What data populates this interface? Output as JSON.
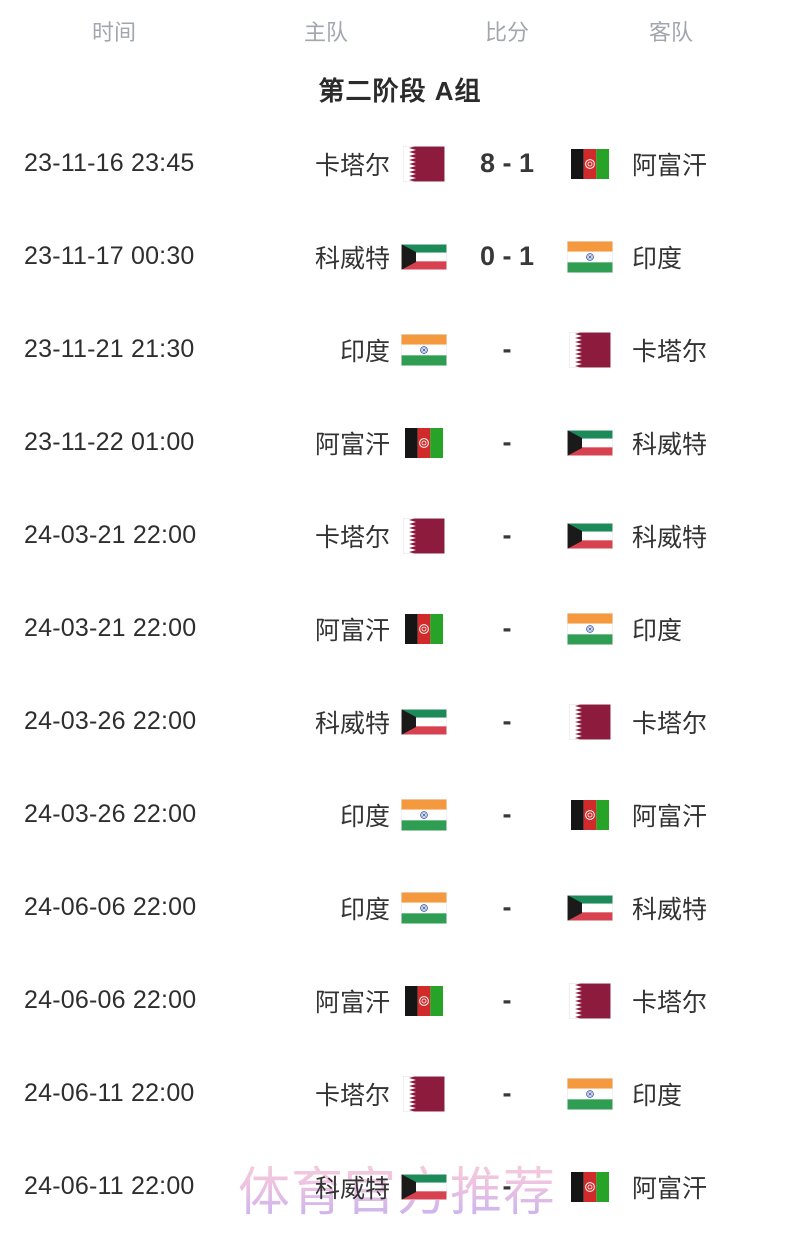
{
  "header": {
    "columns": [
      "时间",
      "主队",
      "比分",
      "客队"
    ]
  },
  "group_title": "第二阶段 A组",
  "watermark": "体育官方推荐",
  "teams": {
    "qatar": {
      "name": "卡塔尔"
    },
    "kuwait": {
      "name": "科威特"
    },
    "india": {
      "name": "印度"
    },
    "afghanistan": {
      "name": "阿富汗"
    }
  },
  "flag_colors": {
    "qatar": {
      "maroon": "#8d1b3d",
      "white": "#ffffff"
    },
    "kuwait": {
      "green": "#1d8a5a",
      "white": "#ffffff",
      "red": "#d8414f",
      "black": "#1a1a1a"
    },
    "india": {
      "saffron": "#f5993e",
      "white": "#ffffff",
      "green": "#2f9e52",
      "navy": "#2b4ea0"
    },
    "afghanistan": {
      "black": "#151515",
      "red": "#d02a2a",
      "green": "#27a327",
      "white": "#ffffff"
    }
  },
  "watermark_colors": {
    "top": "#f7cbce",
    "bottom": "#b7a3f0"
  },
  "matches": [
    {
      "time": "23-11-16 23:45",
      "home": "卡塔尔",
      "home_flag": "qatar",
      "score": "8 - 1",
      "away": "阿富汗",
      "away_flag": "afghanistan"
    },
    {
      "time": "23-11-17 00:30",
      "home": "科威特",
      "home_flag": "kuwait",
      "score": "0 - 1",
      "away": "印度",
      "away_flag": "india"
    },
    {
      "time": "23-11-21 21:30",
      "home": "印度",
      "home_flag": "india",
      "score": "-",
      "away": "卡塔尔",
      "away_flag": "qatar"
    },
    {
      "time": "23-11-22 01:00",
      "home": "阿富汗",
      "home_flag": "afghanistan",
      "score": "-",
      "away": "科威特",
      "away_flag": "kuwait"
    },
    {
      "time": "24-03-21 22:00",
      "home": "卡塔尔",
      "home_flag": "qatar",
      "score": "-",
      "away": "科威特",
      "away_flag": "kuwait"
    },
    {
      "time": "24-03-21 22:00",
      "home": "阿富汗",
      "home_flag": "afghanistan",
      "score": "-",
      "away": "印度",
      "away_flag": "india"
    },
    {
      "time": "24-03-26 22:00",
      "home": "科威特",
      "home_flag": "kuwait",
      "score": "-",
      "away": "卡塔尔",
      "away_flag": "qatar"
    },
    {
      "time": "24-03-26 22:00",
      "home": "印度",
      "home_flag": "india",
      "score": "-",
      "away": "阿富汗",
      "away_flag": "afghanistan"
    },
    {
      "time": "24-06-06 22:00",
      "home": "印度",
      "home_flag": "india",
      "score": "-",
      "away": "科威特",
      "away_flag": "kuwait"
    },
    {
      "time": "24-06-06 22:00",
      "home": "阿富汗",
      "home_flag": "afghanistan",
      "score": "-",
      "away": "卡塔尔",
      "away_flag": "qatar"
    },
    {
      "time": "24-06-11 22:00",
      "home": "卡塔尔",
      "home_flag": "qatar",
      "score": "-",
      "away": "印度",
      "away_flag": "india"
    },
    {
      "time": "24-06-11 22:00",
      "home": "科威特",
      "home_flag": "kuwait",
      "score": "-",
      "away": "阿富汗",
      "away_flag": "afghanistan"
    }
  ]
}
